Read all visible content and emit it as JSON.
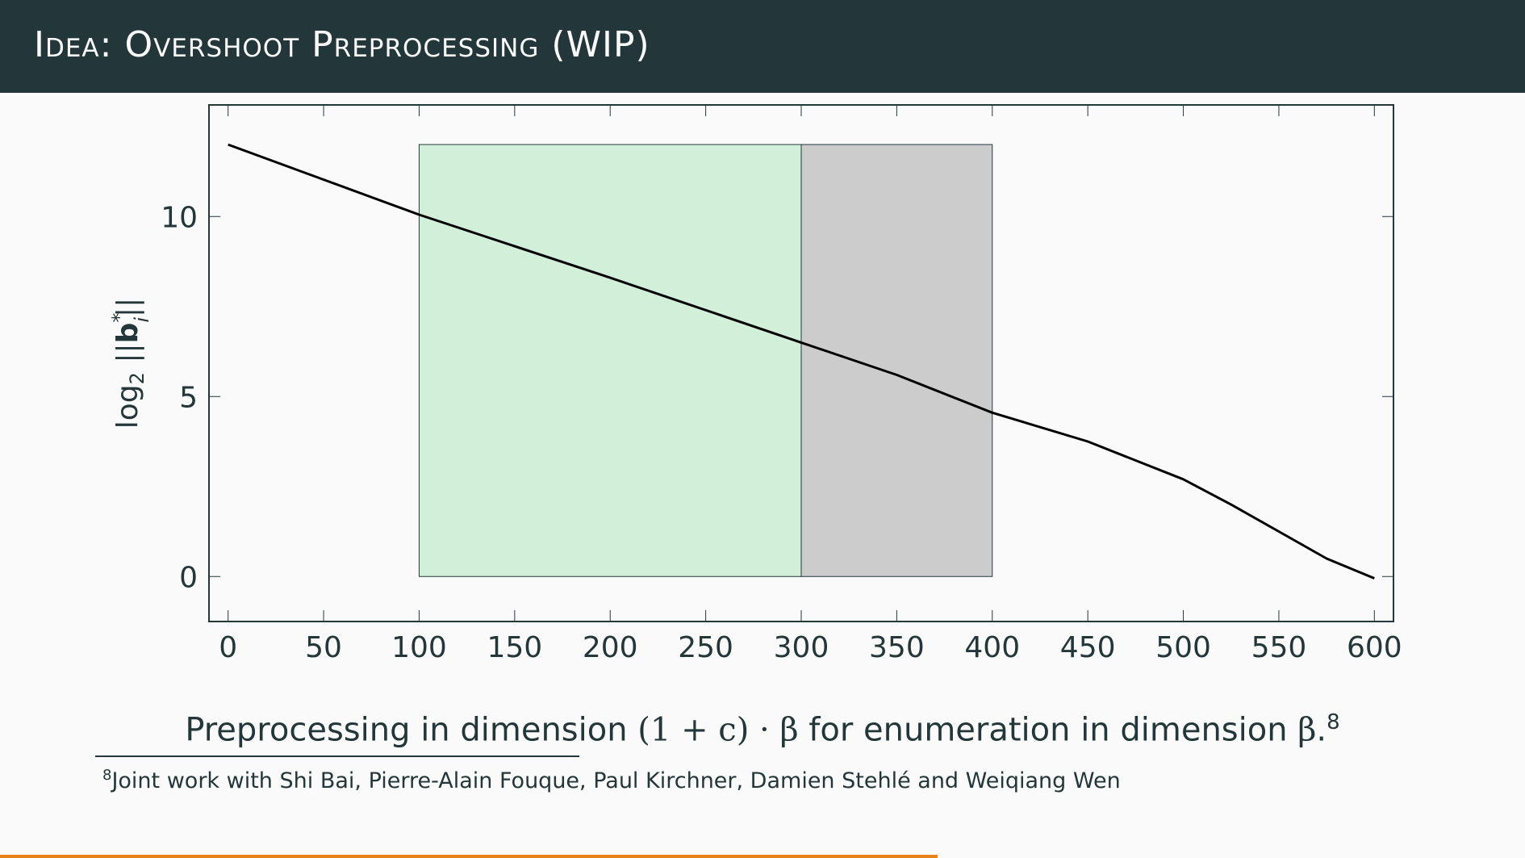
{
  "slide": {
    "title": "Idea: Overshoot Preprocessing (WIP)",
    "caption": {
      "before": "Preprocessing in dimension ",
      "formula": "(1 + c) · β",
      "middle": " for enumeration in dimension ",
      "beta": "β",
      "period": ".",
      "footnote_mark": "8"
    },
    "footnote": {
      "mark": "8",
      "text": "Joint work with Shi Bai, Pierre-Alain Fouque, Paul Kirchner, Damien Stehlé and Weiqiang Wen"
    },
    "progress_fraction": 0.615
  },
  "colors": {
    "header_bg": "#23373b",
    "text": "#23373b",
    "background": "#fafafa",
    "progress": "#eb811b",
    "green_region": "#d2efda",
    "gray_region": "#cccccc",
    "line": "#000000"
  },
  "chart_data": {
    "type": "line",
    "title": "",
    "xlabel": "",
    "ylabel": "log2 ||b*i||",
    "xlim": [
      -10,
      610
    ],
    "ylim": [
      -1.25,
      13.1
    ],
    "x_ticks": [
      0,
      50,
      100,
      150,
      200,
      250,
      300,
      350,
      400,
      450,
      500,
      550,
      600
    ],
    "y_ticks": [
      0,
      5,
      10
    ],
    "grid": false,
    "legend": "none",
    "regions": [
      {
        "x": [
          100,
          300
        ],
        "y": [
          0,
          12
        ],
        "color": "#d2efda"
      },
      {
        "x": [
          300,
          400
        ],
        "y": [
          0,
          12
        ],
        "color": "#cccccc"
      }
    ],
    "series": [
      {
        "x": [
          0,
          100,
          200,
          300,
          350,
          400,
          450,
          500,
          525,
          550,
          575,
          600
        ],
        "values": [
          12,
          10.05,
          8.3,
          6.5,
          5.6,
          4.55,
          3.75,
          2.7,
          2.0,
          1.25,
          0.5,
          -0.05
        ]
      }
    ]
  }
}
